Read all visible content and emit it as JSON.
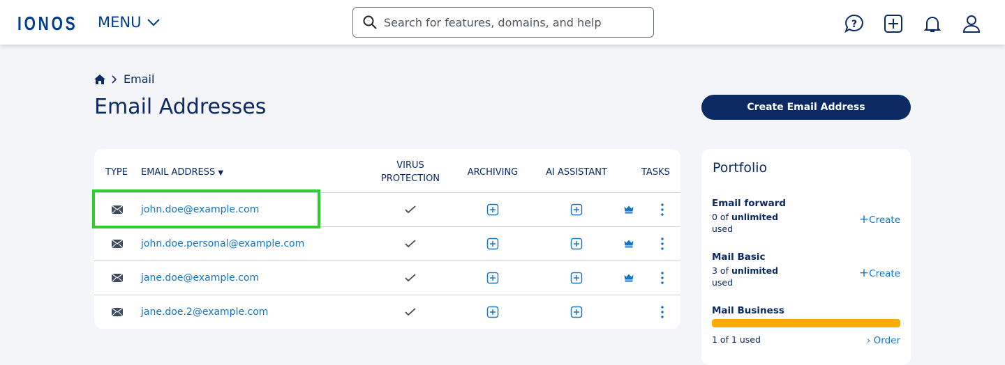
{
  "header": {
    "logo": "IONOS",
    "menu_label": "MENU",
    "search_placeholder": "Search for features, domains, and help"
  },
  "breadcrumb": {
    "current": "Email"
  },
  "page_title": "Email Addresses",
  "create_button": "Create Email Address",
  "table": {
    "headers": {
      "type": "TYPE",
      "email": "EMAIL ADDRESS",
      "sort_indicator": "▼",
      "virus": "VIRUS PROTECTION",
      "archiving": "ARCHIVING",
      "ai": "AI ASSISTANT",
      "tasks": "TASKS"
    },
    "rows": [
      {
        "email": "john.doe@example.com",
        "premium": true
      },
      {
        "email": "john.doe.personal@example.com",
        "premium": true
      },
      {
        "email": "jane.doe@example.com",
        "premium": true
      },
      {
        "email": "jane.doe.2@example.com",
        "premium": false
      }
    ]
  },
  "portfolio": {
    "title": "Portfolio",
    "items": [
      {
        "name": "Email forward",
        "count": "0 of",
        "limit": "unlimited",
        "suffix": "used",
        "action": "Create"
      },
      {
        "name": "Mail Basic",
        "count": "3 of",
        "limit": "unlimited",
        "suffix": "used",
        "action": "Create"
      },
      {
        "name": "Mail Business",
        "usage": "1 of 1 used",
        "action": "Order",
        "fill_percent": 100
      }
    ]
  },
  "colors": {
    "brand": "#003d8f",
    "link": "#1474c4",
    "usage_bar": "#fbab00",
    "highlight": "#2ecc2e"
  }
}
